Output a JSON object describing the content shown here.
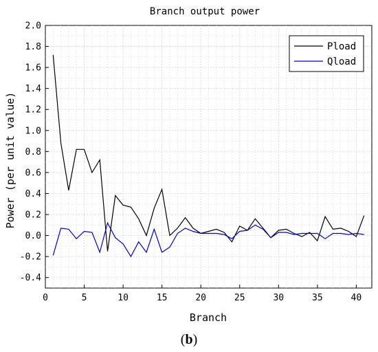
{
  "chart_data": {
    "type": "line",
    "title": "Branch output power",
    "xlabel": "Branch",
    "ylabel": "Power (per unit value)",
    "xlim": [
      0,
      42
    ],
    "ylim": [
      -0.5,
      2.0
    ],
    "xticks": [
      0,
      5,
      10,
      15,
      20,
      25,
      30,
      35,
      40
    ],
    "yticks": [
      -0.4,
      -0.2,
      0.0,
      0.2,
      0.4,
      0.6,
      0.8,
      1.0,
      1.2,
      1.4,
      1.6,
      1.8,
      2.0
    ],
    "grid": true,
    "legend_position": "top-right",
    "x": [
      1,
      2,
      3,
      4,
      5,
      6,
      7,
      8,
      9,
      10,
      11,
      12,
      13,
      14,
      15,
      16,
      17,
      18,
      19,
      20,
      21,
      22,
      23,
      24,
      25,
      26,
      27,
      28,
      29,
      30,
      31,
      32,
      33,
      34,
      35,
      36,
      37,
      38,
      39,
      40,
      41
    ],
    "series": [
      {
        "name": "Pload",
        "color": "#000000",
        "values": [
          1.72,
          0.88,
          0.43,
          0.82,
          0.82,
          0.6,
          0.72,
          -0.15,
          0.38,
          0.29,
          0.27,
          0.16,
          0.0,
          0.26,
          0.44,
          0.0,
          0.07,
          0.17,
          0.07,
          0.02,
          0.04,
          0.06,
          0.03,
          -0.06,
          0.09,
          0.05,
          0.16,
          0.07,
          -0.02,
          0.05,
          0.06,
          0.02,
          -0.01,
          0.03,
          -0.05,
          0.18,
          0.06,
          0.07,
          0.04,
          -0.01,
          0.19
        ]
      },
      {
        "name": "Qload",
        "color": "#0000cc",
        "values": [
          -0.19,
          0.07,
          0.06,
          -0.03,
          0.04,
          0.03,
          -0.16,
          0.12,
          -0.02,
          -0.08,
          -0.2,
          -0.06,
          -0.16,
          0.06,
          -0.16,
          -0.11,
          0.02,
          0.07,
          0.04,
          0.02,
          0.02,
          0.02,
          0.01,
          -0.03,
          0.04,
          0.05,
          0.1,
          0.06,
          -0.02,
          0.03,
          0.03,
          0.01,
          0.02,
          0.02,
          0.02,
          -0.03,
          0.02,
          0.02,
          0.01,
          0.02,
          0.01
        ]
      }
    ]
  },
  "caption": {
    "open": "(",
    "letter": "b",
    "close": ")"
  }
}
